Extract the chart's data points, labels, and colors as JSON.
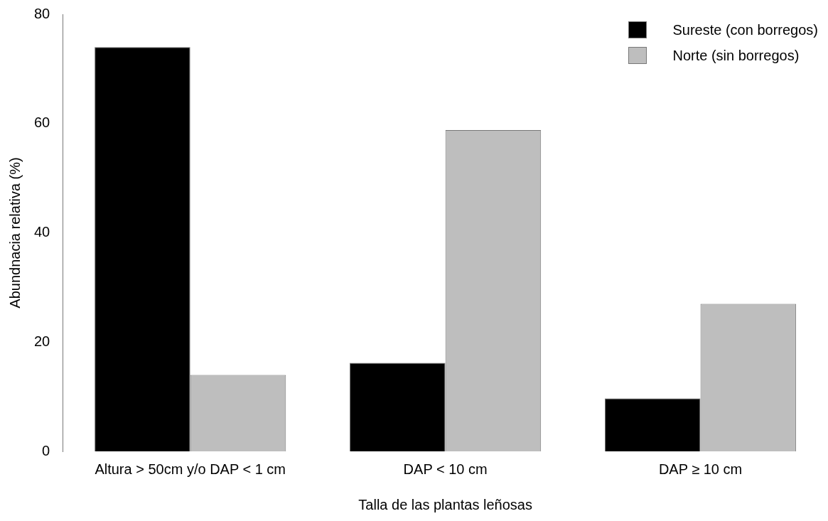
{
  "chart_data": {
    "type": "bar",
    "xlabel": "Talla de las plantas leñosas",
    "ylabel": "Abundnacia relativa (%)",
    "categories": [
      "Altura > 50cm y/o DAP < 1 cm",
      "DAP < 10 cm",
      "DAP ≥ 10 cm"
    ],
    "series": [
      {
        "name": "Sureste (con borregos)",
        "color": "#000000",
        "values": [
          74,
          16.2,
          9.7
        ]
      },
      {
        "name": "Norte (sin borregos)",
        "color": "#bebebe",
        "values": [
          14,
          58.8,
          27
        ]
      }
    ],
    "ylim": [
      0,
      80
    ],
    "yticks": [
      0,
      20,
      40,
      60,
      80
    ],
    "grid": false,
    "legend": "top right"
  }
}
